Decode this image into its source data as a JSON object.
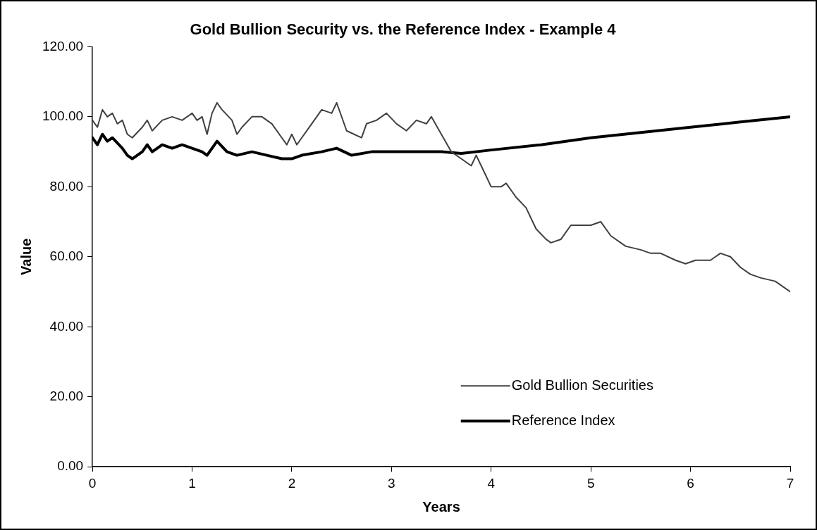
{
  "chart_data": {
    "type": "line",
    "title": "Gold Bullion Security vs. the Reference Index - Example 4",
    "xlabel": "Years",
    "ylabel": "Value",
    "xlim": [
      0,
      7
    ],
    "xticks": [
      0,
      1,
      2,
      3,
      4,
      5,
      6,
      7
    ],
    "ylim": [
      0,
      120
    ],
    "yticks": [
      {
        "value": 0,
        "label": "0.00"
      },
      {
        "value": 20,
        "label": "20.00"
      },
      {
        "value": 40,
        "label": "40.00"
      },
      {
        "value": 60,
        "label": "60.00"
      },
      {
        "value": 80,
        "label": "80.00"
      },
      {
        "value": 100,
        "label": "100.00"
      },
      {
        "value": 120,
        "label": "120.00"
      }
    ],
    "grid": false,
    "legend": "bottom right",
    "marker": "none",
    "line_style": "solid",
    "series": [
      {
        "name": "Gold Bullion Securities",
        "color": "#404040",
        "x": [
          0,
          0.05,
          0.1,
          0.15,
          0.2,
          0.25,
          0.3,
          0.35,
          0.4,
          0.5,
          0.55,
          0.6,
          0.7,
          0.8,
          0.9,
          1.0,
          1.05,
          1.1,
          1.15,
          1.2,
          1.25,
          1.3,
          1.4,
          1.45,
          1.5,
          1.6,
          1.7,
          1.8,
          1.9,
          1.95,
          2.0,
          2.05,
          2.1,
          2.2,
          2.3,
          2.4,
          2.45,
          2.55,
          2.7,
          2.75,
          2.85,
          2.95,
          3.05,
          3.15,
          3.25,
          3.35,
          3.4,
          3.5,
          3.6,
          3.7,
          3.8,
          3.85,
          3.9,
          4.0,
          4.1,
          4.15,
          4.25,
          4.35,
          4.45,
          4.55,
          4.6,
          4.7,
          4.8,
          4.9,
          5.0,
          5.1,
          5.2,
          5.35,
          5.5,
          5.6,
          5.7,
          5.85,
          5.95,
          6.05,
          6.2,
          6.3,
          6.4,
          6.5,
          6.6,
          6.7,
          6.85,
          7.0
        ],
        "values": [
          99,
          97,
          102,
          100,
          101,
          98,
          99,
          95,
          94,
          97,
          99,
          96,
          99,
          100,
          99,
          101,
          99,
          100,
          95,
          101,
          104,
          102,
          99,
          95,
          97,
          100,
          100,
          98,
          94,
          92,
          95,
          92,
          94,
          98,
          102,
          101,
          104,
          96,
          94,
          98,
          99,
          101,
          98,
          96,
          99,
          98,
          100,
          95,
          90,
          88,
          86,
          89,
          86,
          80,
          80,
          81,
          77,
          74,
          68,
          65,
          64,
          65,
          69,
          69,
          69,
          70,
          66,
          63,
          62,
          61,
          61,
          59,
          58,
          59,
          59,
          61,
          60,
          57,
          55,
          54,
          53,
          50
        ]
      },
      {
        "name": "Reference Index",
        "color": "#000000",
        "x": [
          0,
          0.05,
          0.1,
          0.15,
          0.2,
          0.3,
          0.35,
          0.4,
          0.5,
          0.55,
          0.6,
          0.7,
          0.8,
          0.9,
          1.0,
          1.1,
          1.15,
          1.25,
          1.35,
          1.45,
          1.6,
          1.75,
          1.9,
          2.0,
          2.1,
          2.3,
          2.45,
          2.6,
          2.8,
          3.0,
          3.5,
          3.7,
          4.0,
          4.5,
          5.0,
          5.5,
          6.0,
          6.5,
          7.0
        ],
        "values": [
          94,
          92,
          95,
          93,
          94,
          91,
          89,
          88,
          90,
          92,
          90,
          92,
          91,
          92,
          91,
          90,
          89,
          93,
          90,
          89,
          90,
          89,
          88,
          88,
          89,
          90,
          91,
          89,
          90,
          90,
          90,
          89.5,
          90.5,
          92,
          94,
          95.5,
          97,
          98.5,
          100
        ]
      }
    ]
  }
}
